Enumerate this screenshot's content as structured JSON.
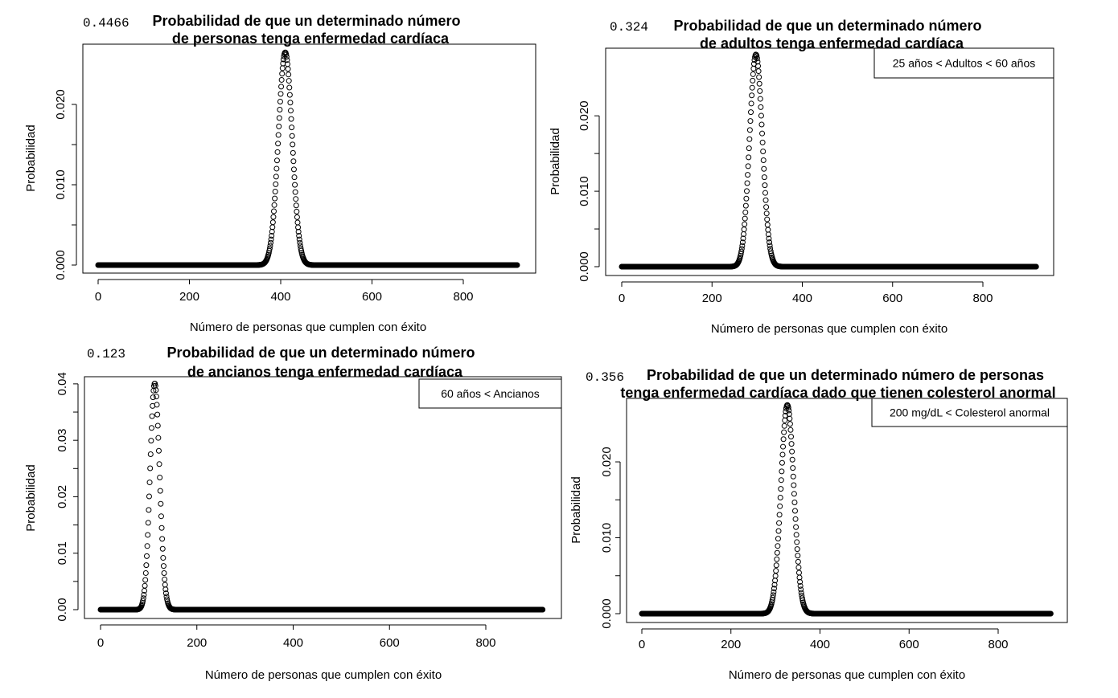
{
  "chart_data": [
    {
      "type": "scatter",
      "value_label": "0.4466",
      "title_lines": [
        "Probabilidad de que un determinado número",
        "de personas tenga enfermedad cardíaca"
      ],
      "xlabel": "Número de personas que cumplen con éxito",
      "ylabel": "Probabilidad",
      "xlim": [
        0,
        920
      ],
      "ylim": [
        0,
        0.0265
      ],
      "x_ticks": [
        "0",
        "200",
        "400",
        "600",
        "800"
      ],
      "y_ticks": [
        "0.000",
        "0.010",
        "0.020"
      ],
      "legend": "",
      "distribution": {
        "n": 918,
        "p": 0.4466
      },
      "marker": "open-circle",
      "grid": false
    },
    {
      "type": "scatter",
      "value_label": "0.324",
      "title_lines": [
        "Probabilidad de que un determinado número",
        "de adultos tenga enfermedad cardíaca"
      ],
      "xlabel": "Número de personas que cumplen con éxito",
      "ylabel": "Probabilidad",
      "xlim": [
        0,
        920
      ],
      "ylim": [
        0,
        0.0279
      ],
      "x_ticks": [
        "0",
        "200",
        "400",
        "600",
        "800"
      ],
      "y_ticks": [
        "0.000",
        "0.010",
        "0.020"
      ],
      "legend": "25 años < Adultos < 60 años",
      "legend_position": "top-right",
      "distribution": {
        "n": 918,
        "p": 0.324
      },
      "marker": "open-circle",
      "grid": false
    },
    {
      "type": "scatter",
      "value_label": "0.123",
      "title_lines": [
        "Probabilidad de que un determinado número",
        "de ancianos tenga enfermedad cardíaca"
      ],
      "xlabel": "Número de personas que cumplen con éxito",
      "ylabel": "Probabilidad",
      "xlim": [
        0,
        920
      ],
      "ylim": [
        0,
        0.0397
      ],
      "x_ticks": [
        "0",
        "200",
        "400",
        "600",
        "800"
      ],
      "y_ticks": [
        "0.00",
        "0.01",
        "0.02",
        "0.03",
        "0.04"
      ],
      "legend": "60 años < Ancianos",
      "legend_position": "top-right",
      "distribution": {
        "n": 918,
        "p": 0.123
      },
      "marker": "open-circle",
      "grid": false
    },
    {
      "type": "scatter",
      "value_label": "0.356",
      "title_lines": [
        "Probabilidad de que un determinado número  de personas",
        "tenga enfermedad cardíaca dado que tienen colesterol anormal"
      ],
      "xlabel": "Número de personas que cumplen con éxito",
      "ylabel": "Probabilidad",
      "xlim": [
        0,
        920
      ],
      "ylim": [
        0,
        0.0272
      ],
      "x_ticks": [
        "0",
        "200",
        "400",
        "600",
        "800"
      ],
      "y_ticks": [
        "0.000",
        "0.010",
        "0.020"
      ],
      "legend": "200 mg/dL < Colesterol anormal",
      "legend_position": "top-right",
      "distribution": {
        "n": 918,
        "p": 0.356
      },
      "marker": "open-circle",
      "grid": false
    }
  ]
}
